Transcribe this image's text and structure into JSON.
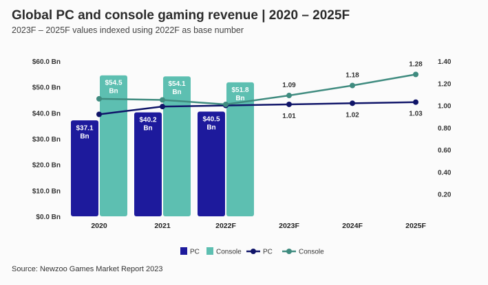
{
  "title": "Global PC and console gaming revenue | 2020 – 2025F",
  "subtitle": "2023F – 2025F values indexed using 2022F as base number",
  "source": "Source: Newzoo Games Market Report 2023",
  "chart_data": {
    "type": "bar+line",
    "categories": [
      "2020",
      "2021",
      "2022F",
      "2023F",
      "2024F",
      "2025F"
    ],
    "left_axis": {
      "ticks": [
        "$60.0 Bn",
        "$50.0 Bn",
        "$40.0 Bn",
        "$30.0 Bn",
        "$20.0 Bn",
        "$10.0 Bn",
        "$0.0 Bn"
      ],
      "ylim": [
        0,
        60
      ]
    },
    "right_axis": {
      "ticks": [
        "1.40",
        "1.20",
        "1.00",
        "0.80",
        "0.60",
        "0.40",
        "0.20"
      ],
      "ylim": [
        0,
        1.4
      ]
    },
    "bar_series": [
      {
        "name": "PC",
        "color": "#1d1a9c",
        "values": [
          37.1,
          40.2,
          40.5
        ],
        "labels": [
          "$37.1 Bn",
          "$40.2 Bn",
          "$40.5 Bn"
        ]
      },
      {
        "name": "Console",
        "color": "#5dbfb1",
        "values": [
          54.5,
          54.1,
          51.8
        ],
        "labels": [
          "$54.5 Bn",
          "$54.1 Bn",
          "$51.8 Bn"
        ]
      }
    ],
    "line_series": [
      {
        "name": "PC",
        "color": "#0f1468",
        "values": [
          0.92,
          0.99,
          1.0,
          1.01,
          1.02,
          1.03
        ],
        "labels": [
          "",
          "",
          "",
          "1.01",
          "1.02",
          "1.03"
        ]
      },
      {
        "name": "Console",
        "color": "#3f8b7f",
        "values": [
          1.06,
          1.05,
          1.01,
          1.09,
          1.18,
          1.28
        ],
        "labels": [
          "",
          "",
          "",
          "1.09",
          "1.18",
          "1.28"
        ]
      }
    ],
    "legend": [
      {
        "label": "PC",
        "kind": "bar",
        "color": "#1d1a9c"
      },
      {
        "label": "Console",
        "kind": "bar",
        "color": "#5dbfb1"
      },
      {
        "label": "PC",
        "kind": "line",
        "color": "#0f1468"
      },
      {
        "label": "Console",
        "kind": "line",
        "color": "#3f8b7f"
      }
    ],
    "legend_position": "bottom"
  }
}
